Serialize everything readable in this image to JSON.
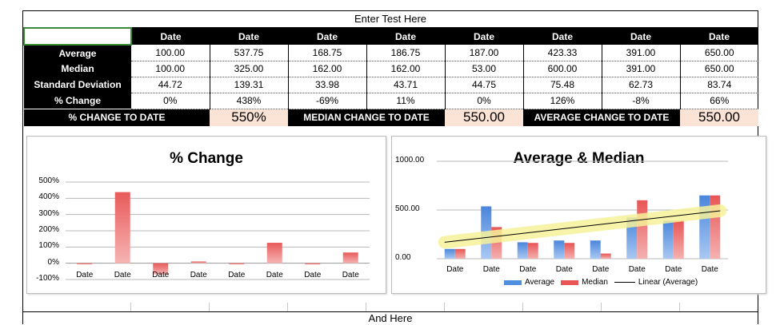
{
  "sheet": {
    "title": "Enter Test Here",
    "footer": "And Here",
    "column_headers": [
      "Date",
      "Date",
      "Date",
      "Date",
      "Date",
      "Date",
      "Date",
      "Date"
    ],
    "rows": [
      {
        "label": "Average",
        "values": [
          "100.00",
          "537.75",
          "168.75",
          "186.75",
          "187.00",
          "423.33",
          "391.00",
          "650.00"
        ]
      },
      {
        "label": "Median",
        "values": [
          "100.00",
          "325.00",
          "162.00",
          "162.00",
          "53.00",
          "600.00",
          "391.00",
          "650.00"
        ]
      },
      {
        "label": "Standard Deviation",
        "values": [
          "44.72",
          "139.31",
          "33.98",
          "43.71",
          "44.75",
          "75.48",
          "62.73",
          "83.74"
        ]
      },
      {
        "label": "% Change",
        "values": [
          "0%",
          "438%",
          "-69%",
          "11%",
          "0%",
          "126%",
          "-8%",
          "66%"
        ]
      }
    ],
    "summary": {
      "pct_label": "% CHANGE TO DATE",
      "pct_value": "550%",
      "median_label": "MEDIAN CHANGE TO DATE",
      "median_value": "550.00",
      "avg_label": "AVERAGE CHANGE TO DATE",
      "avg_value": "550.00"
    }
  },
  "colors": {
    "header_bg": "#000000",
    "summary_value_bg": "#fbe3d6",
    "selection": "#3a8a3a",
    "average_bar": "#4f8fe0",
    "median_bar": "#e85555",
    "trend_glow": "#f6f29a"
  },
  "chart_data": [
    {
      "type": "bar",
      "title": "% Change",
      "categories": [
        "Date",
        "Date",
        "Date",
        "Date",
        "Date",
        "Date",
        "Date",
        "Date"
      ],
      "series": [
        {
          "values": [
            0,
            438,
            -69,
            11,
            0,
            126,
            -8,
            66
          ]
        }
      ],
      "ylim": [
        -100,
        500
      ],
      "yticks": [
        "500%",
        "400%",
        "300%",
        "200%",
        "100%",
        "0%",
        "-100%"
      ],
      "grid": true
    },
    {
      "type": "bar",
      "title": "Average & Median",
      "categories": [
        "Date",
        "Date",
        "Date",
        "Date",
        "Date",
        "Date",
        "Date",
        "Date"
      ],
      "series": [
        {
          "name": "Average",
          "values": [
            100,
            537.75,
            168.75,
            186.75,
            187,
            423.33,
            391,
            650
          ]
        },
        {
          "name": "Median",
          "values": [
            100,
            325,
            162,
            162,
            53,
            600,
            391,
            650
          ]
        }
      ],
      "trendline": {
        "name": "Linear (Average)",
        "of": "Average"
      },
      "ylim": [
        0,
        1000
      ],
      "yticks": [
        "1000.00",
        "500.00",
        "0.00"
      ],
      "legend_position": "bottom",
      "grid": true
    }
  ]
}
